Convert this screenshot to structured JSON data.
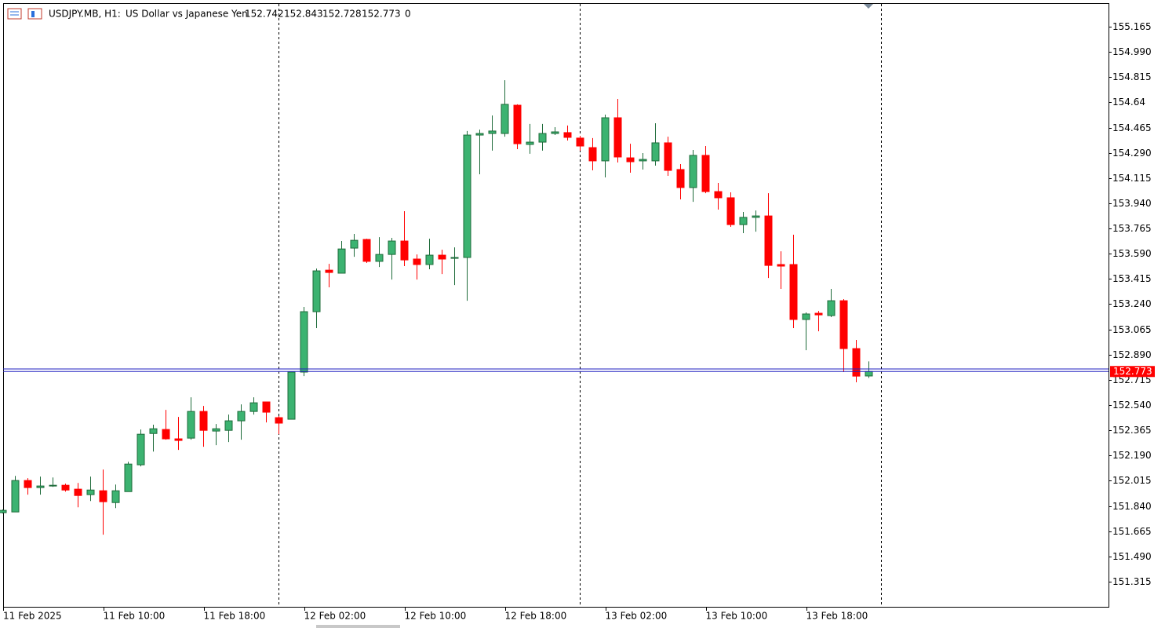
{
  "chart_data": {
    "type": "candlestick",
    "title": "USDJPY.MB, H1:",
    "subtitle": "US Dollar vs Japanese Yen",
    "volume": 0,
    "categories": [
      "11 Feb 2025",
      null,
      null,
      null,
      null,
      null,
      null,
      null,
      "11 Feb 10:00",
      null,
      null,
      null,
      null,
      null,
      null,
      null,
      "11 Feb 18:00",
      null,
      null,
      null,
      null,
      null,
      null,
      null,
      "12 Feb 02:00",
      null,
      null,
      null,
      null,
      null,
      null,
      null,
      "12 Feb 10:00",
      null,
      null,
      null,
      null,
      null,
      null,
      null,
      "12 Feb 18:00",
      null,
      null,
      null,
      null,
      null,
      null,
      null,
      "13 Feb 02:00",
      null,
      null,
      null,
      null,
      null,
      null,
      null,
      "13 Feb 10:00",
      null,
      null,
      null,
      null,
      null,
      null,
      null,
      "13 Feb 18:00",
      null,
      null,
      null,
      null,
      null
    ],
    "open": [
      151.794,
      151.799,
      152.017,
      151.968,
      151.979,
      151.984,
      151.957,
      151.919,
      151.946,
      151.864,
      151.94,
      152.126,
      152.343,
      152.371,
      152.306,
      152.311,
      152.496,
      152.36,
      152.365,
      152.431,
      152.496,
      152.562,
      152.453,
      152.442,
      152.769,
      153.188,
      153.476,
      153.455,
      153.629,
      153.689,
      153.537,
      153.585,
      153.678,
      153.553,
      153.515,
      153.58,
      153.558,
      153.564,
      154.413,
      154.424,
      154.424,
      154.62,
      154.348,
      154.364,
      154.424,
      154.43,
      154.392,
      154.326,
      154.234,
      154.533,
      154.255,
      154.234,
      154.234,
      154.359,
      154.174,
      154.049,
      154.272,
      154.021,
      153.978,
      153.792,
      153.842,
      153.852,
      153.515,
      153.515,
      153.134,
      153.177,
      153.161,
      153.264,
      152.932,
      152.742
    ],
    "high": [
      151.816,
      152.049,
      152.033,
      152.044,
      152.038,
      151.995,
      152.0,
      152.044,
      152.093,
      151.989,
      152.147,
      152.371,
      152.404,
      152.507,
      152.458,
      152.594,
      152.534,
      152.409,
      152.474,
      152.545,
      152.594,
      152.562,
      152.464,
      152.774,
      153.221,
      153.487,
      153.52,
      153.678,
      153.727,
      153.694,
      153.705,
      153.7,
      153.885,
      153.585,
      153.694,
      153.618,
      153.634,
      154.441,
      154.451,
      154.549,
      154.794,
      154.626,
      154.49,
      154.49,
      154.468,
      154.479,
      154.408,
      154.392,
      154.555,
      154.664,
      154.353,
      154.288,
      154.495,
      154.402,
      154.212,
      154.31,
      154.337,
      154.081,
      154.016,
      153.88,
      153.89,
      154.01,
      153.607,
      153.722,
      153.183,
      153.193,
      153.346,
      153.275,
      152.992,
      152.843
    ],
    "low": [
      151.788,
      151.799,
      151.919,
      151.919,
      151.973,
      151.94,
      151.831,
      151.875,
      151.641,
      151.826,
      151.94,
      152.115,
      152.218,
      152.3,
      152.229,
      152.3,
      152.251,
      152.262,
      152.284,
      152.3,
      152.474,
      152.42,
      152.338,
      152.442,
      152.741,
      153.074,
      153.357,
      153.455,
      153.569,
      153.526,
      153.498,
      153.411,
      153.504,
      153.411,
      153.482,
      153.449,
      153.373,
      153.264,
      154.141,
      154.305,
      154.402,
      154.315,
      154.283,
      154.305,
      154.413,
      154.375,
      154.305,
      154.168,
      154.119,
      154.223,
      154.152,
      154.174,
      154.201,
      154.13,
      153.967,
      153.95,
      154.01,
      153.896,
      153.776,
      153.733,
      153.743,
      153.422,
      153.346,
      153.074,
      152.921,
      153.052,
      153.15,
      152.769,
      152.698,
      152.728
    ],
    "close": [
      151.81,
      152.017,
      151.968,
      151.979,
      151.984,
      151.951,
      151.913,
      151.951,
      151.87,
      151.946,
      152.131,
      152.338,
      152.376,
      152.306,
      152.295,
      152.496,
      152.365,
      152.376,
      152.431,
      152.496,
      152.556,
      152.491,
      152.415,
      152.769,
      153.188,
      153.471,
      153.46,
      153.623,
      153.683,
      153.537,
      153.585,
      153.678,
      153.547,
      153.515,
      153.58,
      153.553,
      153.564,
      154.413,
      154.424,
      154.441,
      154.626,
      154.353,
      154.364,
      154.424,
      154.435,
      154.397,
      154.337,
      154.234,
      154.533,
      154.261,
      154.228,
      154.244,
      154.359,
      154.168,
      154.049,
      154.272,
      154.021,
      153.978,
      153.792,
      153.842,
      153.852,
      153.509,
      153.504,
      153.134,
      153.172,
      153.166,
      153.264,
      152.932,
      152.741,
      152.773
    ],
    "up_color": "#3cb371",
    "up_border": "#1e6b3a",
    "down_color": "#ff0000",
    "last_price": 152.773,
    "ask_price": 152.791,
    "price_line_color": "#2020c0",
    "ylim": [
      151.141,
      155.328
    ],
    "yticks": [
      155.165,
      {
        "value": 154.99,
        "label": "154.990"
      },
      154.815,
      154.64,
      {
        "value": 154.465,
        "label": "154.465"
      },
      {
        "value": 154.29,
        "label": "154.290"
      },
      154.115,
      {
        "value": 153.94,
        "label": "153.940"
      },
      153.765,
      {
        "value": 153.59,
        "label": "153.590"
      },
      153.415,
      {
        "value": 153.24,
        "label": "153.240"
      },
      153.065,
      {
        "value": 152.89,
        "label": "152.890"
      },
      152.715,
      {
        "value": 152.54,
        "label": "152.540"
      },
      152.365,
      {
        "value": 152.19,
        "label": "152.190"
      },
      152.015,
      {
        "value": 151.84,
        "label": "151.840"
      },
      151.665,
      {
        "value": 151.49,
        "label": "151.490"
      },
      151.315
    ],
    "grid": false
  }
}
